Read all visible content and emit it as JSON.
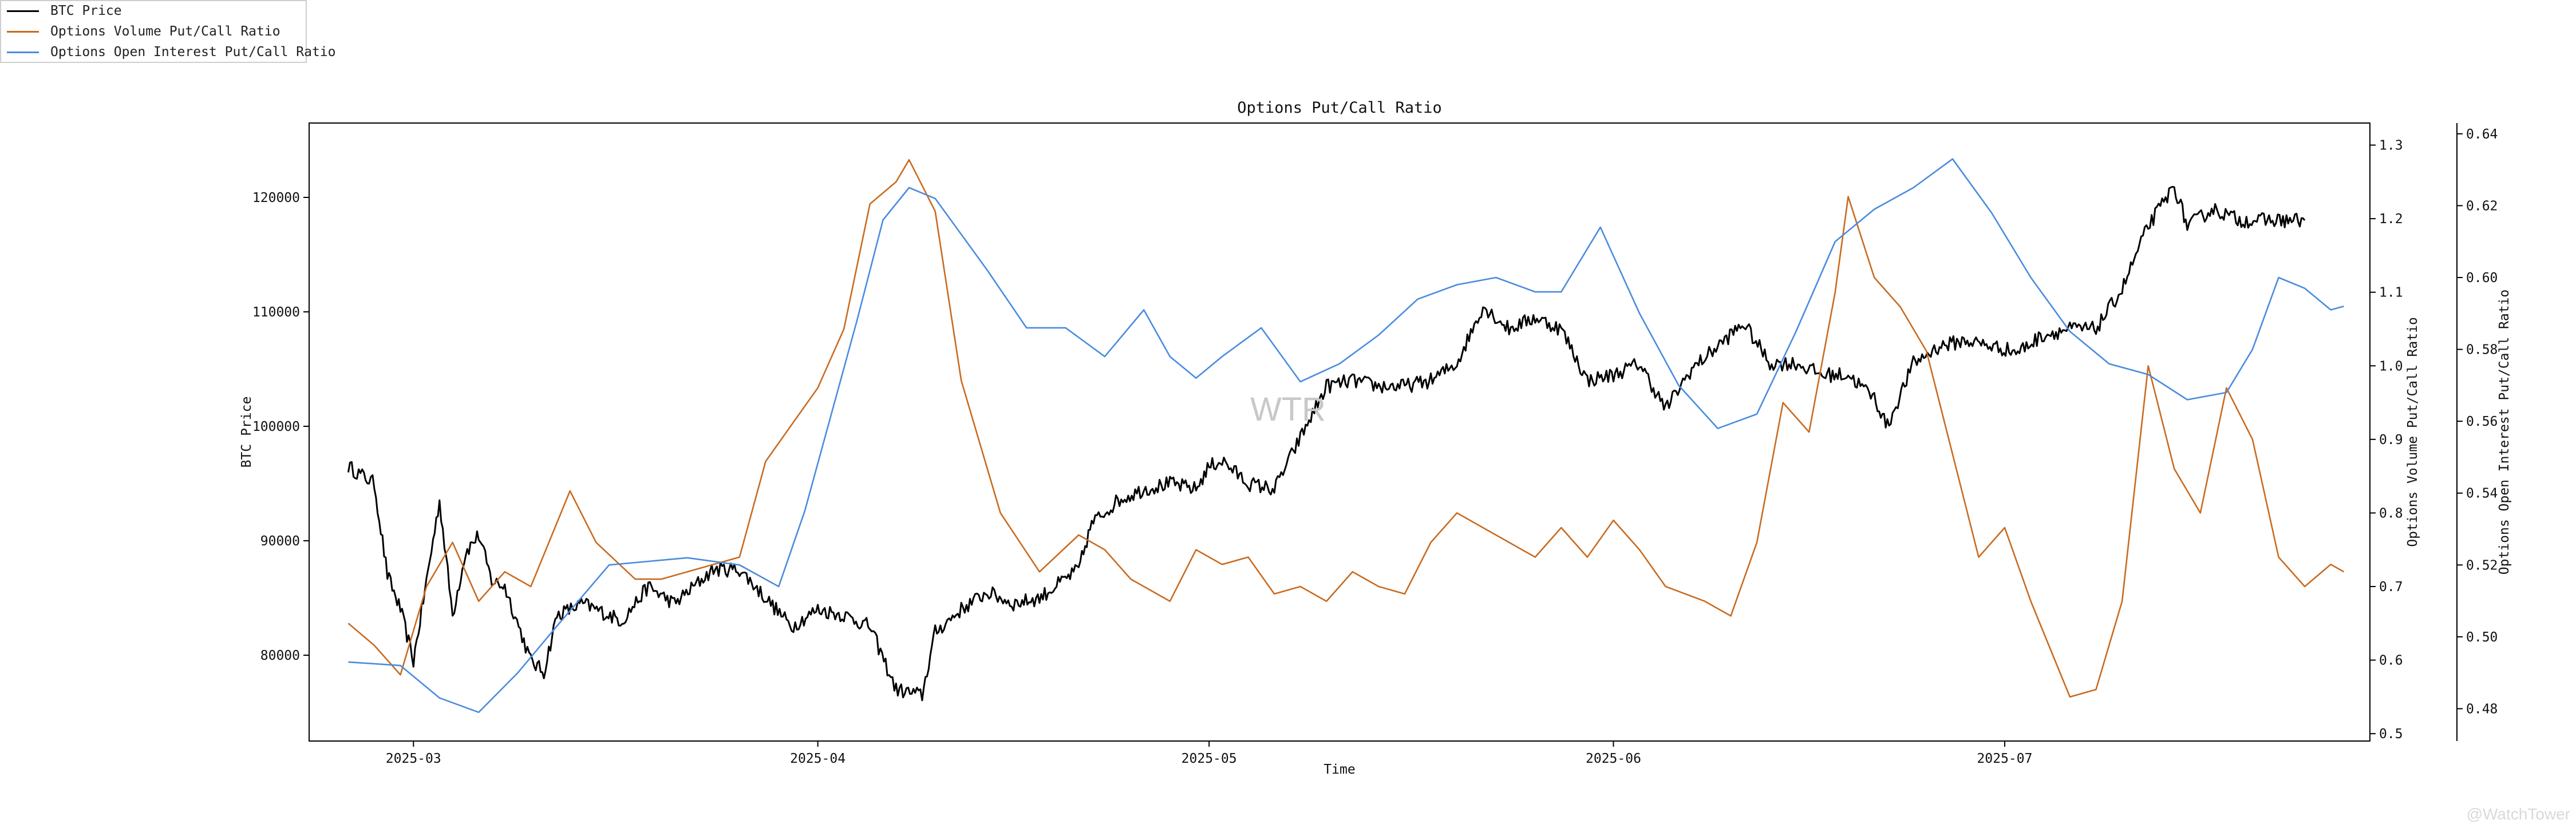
{
  "chart_data": {
    "type": "line",
    "title": "Options Put/Call Ratio",
    "xlabel": "Time",
    "x_ticks": [
      "2025-03",
      "2025-04",
      "2025-05",
      "2025-06",
      "2025-07"
    ],
    "x_range": [
      "2025-02-21",
      "2025-07-29"
    ],
    "axes": {
      "left": {
        "label": "BTC Price",
        "lim": [
          72500,
          126500
        ],
        "ticks": [
          80000,
          90000,
          100000,
          110000,
          120000
        ]
      },
      "right1": {
        "label": "Options Volume Put/Call Ratio",
        "lim": [
          0.49,
          1.33
        ],
        "ticks": [
          0.5,
          0.6,
          0.7,
          0.8,
          0.9,
          1.0,
          1.1,
          1.2,
          1.3
        ]
      },
      "right2": {
        "label": "Options Open Interest Put/Call Ratio",
        "lim": [
          0.471,
          0.643
        ],
        "ticks": [
          0.48,
          0.5,
          0.52,
          0.54,
          0.56,
          0.58,
          0.6,
          0.62,
          0.64
        ]
      }
    },
    "series": [
      {
        "name": "BTC Price",
        "axis": "left",
        "color": "#000000",
        "points": [
          [
            "2025-02-24",
            96500
          ],
          [
            "2025-02-26",
            95000
          ],
          [
            "2025-02-27",
            87000
          ],
          [
            "2025-02-28",
            84000
          ],
          [
            "2025-03-01",
            79500
          ],
          [
            "2025-03-02",
            86500
          ],
          [
            "2025-03-03",
            93500
          ],
          [
            "2025-03-04",
            83500
          ],
          [
            "2025-03-05",
            89000
          ],
          [
            "2025-03-06",
            90500
          ],
          [
            "2025-03-07",
            86500
          ],
          [
            "2025-03-08",
            86000
          ],
          [
            "2025-03-10",
            79500
          ],
          [
            "2025-03-11",
            78500
          ],
          [
            "2025-03-12",
            83500
          ],
          [
            "2025-03-14",
            84500
          ],
          [
            "2025-03-17",
            83000
          ],
          [
            "2025-03-19",
            86000
          ],
          [
            "2025-03-21",
            84500
          ],
          [
            "2025-03-24",
            87500
          ],
          [
            "2025-03-26",
            87500
          ],
          [
            "2025-03-28",
            85000
          ],
          [
            "2025-03-30",
            82500
          ],
          [
            "2025-04-01",
            84000
          ],
          [
            "2025-04-03",
            83500
          ],
          [
            "2025-04-05",
            82500
          ],
          [
            "2025-04-07",
            77000
          ],
          [
            "2025-04-09",
            76500
          ],
          [
            "2025-04-10",
            82000
          ],
          [
            "2025-04-12",
            84000
          ],
          [
            "2025-04-14",
            85500
          ],
          [
            "2025-04-16",
            84500
          ],
          [
            "2025-04-18",
            85000
          ],
          [
            "2025-04-21",
            87500
          ],
          [
            "2025-04-22",
            91500
          ],
          [
            "2025-04-24",
            93500
          ],
          [
            "2025-04-26",
            94500
          ],
          [
            "2025-04-28",
            95000
          ],
          [
            "2025-04-30",
            94500
          ],
          [
            "2025-05-01",
            96500
          ],
          [
            "2025-05-02",
            97000
          ],
          [
            "2025-05-04",
            95000
          ],
          [
            "2025-05-06",
            94500
          ],
          [
            "2025-05-08",
            99000
          ],
          [
            "2025-05-10",
            103500
          ],
          [
            "2025-05-12",
            104000
          ],
          [
            "2025-05-14",
            103500
          ],
          [
            "2025-05-16",
            103500
          ],
          [
            "2025-05-18",
            104000
          ],
          [
            "2025-05-20",
            105500
          ],
          [
            "2025-05-22",
            110500
          ],
          [
            "2025-05-24",
            108500
          ],
          [
            "2025-05-26",
            109500
          ],
          [
            "2025-05-28",
            108500
          ],
          [
            "2025-05-30",
            104000
          ],
          [
            "2025-06-01",
            104500
          ],
          [
            "2025-06-03",
            105500
          ],
          [
            "2025-06-05",
            101500
          ],
          [
            "2025-06-07",
            105000
          ],
          [
            "2025-06-09",
            107000
          ],
          [
            "2025-06-11",
            109000
          ],
          [
            "2025-06-13",
            105500
          ],
          [
            "2025-06-15",
            105500
          ],
          [
            "2025-06-17",
            104500
          ],
          [
            "2025-06-19",
            104500
          ],
          [
            "2025-06-21",
            102500
          ],
          [
            "2025-06-22",
            100000
          ],
          [
            "2025-06-24",
            105500
          ],
          [
            "2025-06-26",
            107000
          ],
          [
            "2025-06-28",
            107500
          ],
          [
            "2025-06-30",
            107000
          ],
          [
            "2025-07-02",
            106500
          ],
          [
            "2025-07-04",
            108000
          ],
          [
            "2025-07-06",
            108500
          ],
          [
            "2025-07-08",
            108500
          ],
          [
            "2025-07-10",
            112000
          ],
          [
            "2025-07-12",
            117500
          ],
          [
            "2025-07-14",
            121000
          ],
          [
            "2025-07-15",
            117500
          ],
          [
            "2025-07-17",
            119000
          ],
          [
            "2025-07-19",
            118000
          ],
          [
            "2025-07-21",
            118000
          ],
          [
            "2025-07-23",
            118000
          ],
          [
            "2025-07-24",
            118000
          ]
        ]
      },
      {
        "name": "Options Volume Put/Call Ratio",
        "axis": "right1",
        "color": "#c96b20",
        "points": [
          [
            "2025-02-24",
            0.65
          ],
          [
            "2025-02-26",
            0.62
          ],
          [
            "2025-02-28",
            0.58
          ],
          [
            "2025-03-02",
            0.7
          ],
          [
            "2025-03-04",
            0.76
          ],
          [
            "2025-03-06",
            0.68
          ],
          [
            "2025-03-08",
            0.72
          ],
          [
            "2025-03-10",
            0.7
          ],
          [
            "2025-03-13",
            0.83
          ],
          [
            "2025-03-15",
            0.76
          ],
          [
            "2025-03-18",
            0.71
          ],
          [
            "2025-03-20",
            0.71
          ],
          [
            "2025-03-22",
            0.72
          ],
          [
            "2025-03-24",
            0.73
          ],
          [
            "2025-03-26",
            0.74
          ],
          [
            "2025-03-28",
            0.87
          ],
          [
            "2025-03-30",
            0.92
          ],
          [
            "2025-04-01",
            0.97
          ],
          [
            "2025-04-03",
            1.05
          ],
          [
            "2025-04-05",
            1.22
          ],
          [
            "2025-04-07",
            1.25
          ],
          [
            "2025-04-08",
            1.28
          ],
          [
            "2025-04-10",
            1.21
          ],
          [
            "2025-04-12",
            0.98
          ],
          [
            "2025-04-15",
            0.8
          ],
          [
            "2025-04-18",
            0.72
          ],
          [
            "2025-04-21",
            0.77
          ],
          [
            "2025-04-23",
            0.75
          ],
          [
            "2025-04-25",
            0.71
          ],
          [
            "2025-04-28",
            0.68
          ],
          [
            "2025-04-30",
            0.75
          ],
          [
            "2025-05-02",
            0.73
          ],
          [
            "2025-05-04",
            0.74
          ],
          [
            "2025-05-06",
            0.69
          ],
          [
            "2025-05-08",
            0.7
          ],
          [
            "2025-05-10",
            0.68
          ],
          [
            "2025-05-12",
            0.72
          ],
          [
            "2025-05-14",
            0.7
          ],
          [
            "2025-05-16",
            0.69
          ],
          [
            "2025-05-18",
            0.76
          ],
          [
            "2025-05-20",
            0.8
          ],
          [
            "2025-05-22",
            0.78
          ],
          [
            "2025-05-24",
            0.76
          ],
          [
            "2025-05-26",
            0.74
          ],
          [
            "2025-05-28",
            0.78
          ],
          [
            "2025-05-30",
            0.74
          ],
          [
            "2025-06-01",
            0.79
          ],
          [
            "2025-06-03",
            0.75
          ],
          [
            "2025-06-05",
            0.7
          ],
          [
            "2025-06-08",
            0.68
          ],
          [
            "2025-06-10",
            0.66
          ],
          [
            "2025-06-12",
            0.76
          ],
          [
            "2025-06-14",
            0.95
          ],
          [
            "2025-06-16",
            0.91
          ],
          [
            "2025-06-18",
            1.1
          ],
          [
            "2025-06-19",
            1.23
          ],
          [
            "2025-06-21",
            1.12
          ],
          [
            "2025-06-23",
            1.08
          ],
          [
            "2025-06-25",
            1.02
          ],
          [
            "2025-06-27",
            0.88
          ],
          [
            "2025-06-29",
            0.74
          ],
          [
            "2025-07-01",
            0.78
          ],
          [
            "2025-07-03",
            0.68
          ],
          [
            "2025-07-06",
            0.55
          ],
          [
            "2025-07-08",
            0.56
          ],
          [
            "2025-07-10",
            0.68
          ],
          [
            "2025-07-12",
            1.0
          ],
          [
            "2025-07-14",
            0.86
          ],
          [
            "2025-07-16",
            0.8
          ],
          [
            "2025-07-18",
            0.97
          ],
          [
            "2025-07-20",
            0.9
          ],
          [
            "2025-07-22",
            0.74
          ],
          [
            "2025-07-24",
            0.7
          ],
          [
            "2025-07-26",
            0.73
          ],
          [
            "2025-07-27",
            0.72
          ]
        ]
      },
      {
        "name": "Options Open Interest Put/Call Ratio",
        "axis": "right2",
        "color": "#4a8be0",
        "points": [
          [
            "2025-02-24",
            0.493
          ],
          [
            "2025-02-28",
            0.492
          ],
          [
            "2025-03-03",
            0.483
          ],
          [
            "2025-03-06",
            0.479
          ],
          [
            "2025-03-09",
            0.49
          ],
          [
            "2025-03-12",
            0.503
          ],
          [
            "2025-03-16",
            0.52
          ],
          [
            "2025-03-22",
            0.522
          ],
          [
            "2025-03-26",
            0.52
          ],
          [
            "2025-03-29",
            0.514
          ],
          [
            "2025-03-31",
            0.535
          ],
          [
            "2025-04-04",
            0.588
          ],
          [
            "2025-04-06",
            0.616
          ],
          [
            "2025-04-08",
            0.625
          ],
          [
            "2025-04-10",
            0.622
          ],
          [
            "2025-04-14",
            0.602
          ],
          [
            "2025-04-17",
            0.586
          ],
          [
            "2025-04-20",
            0.586
          ],
          [
            "2025-04-23",
            0.578
          ],
          [
            "2025-04-26",
            0.591
          ],
          [
            "2025-04-28",
            0.578
          ],
          [
            "2025-04-30",
            0.572
          ],
          [
            "2025-05-02",
            0.578
          ],
          [
            "2025-05-05",
            0.586
          ],
          [
            "2025-05-08",
            0.571
          ],
          [
            "2025-05-11",
            0.576
          ],
          [
            "2025-05-14",
            0.584
          ],
          [
            "2025-05-17",
            0.594
          ],
          [
            "2025-05-20",
            0.598
          ],
          [
            "2025-05-23",
            0.6
          ],
          [
            "2025-05-26",
            0.596
          ],
          [
            "2025-05-28",
            0.596
          ],
          [
            "2025-05-31",
            0.614
          ],
          [
            "2025-06-03",
            0.59
          ],
          [
            "2025-06-06",
            0.57
          ],
          [
            "2025-06-09",
            0.558
          ],
          [
            "2025-06-12",
            0.562
          ],
          [
            "2025-06-15",
            0.585
          ],
          [
            "2025-06-18",
            0.61
          ],
          [
            "2025-06-21",
            0.619
          ],
          [
            "2025-06-24",
            0.625
          ],
          [
            "2025-06-27",
            0.633
          ],
          [
            "2025-06-30",
            0.618
          ],
          [
            "2025-07-03",
            0.6
          ],
          [
            "2025-07-06",
            0.585
          ],
          [
            "2025-07-09",
            0.576
          ],
          [
            "2025-07-12",
            0.573
          ],
          [
            "2025-07-15",
            0.566
          ],
          [
            "2025-07-18",
            0.568
          ],
          [
            "2025-07-20",
            0.58
          ],
          [
            "2025-07-22",
            0.6
          ],
          [
            "2025-07-24",
            0.597
          ],
          [
            "2025-07-26",
            0.591
          ],
          [
            "2025-07-27",
            0.592
          ]
        ]
      }
    ],
    "legend": {
      "placement": "top-left, outside"
    },
    "watermark": "WTR",
    "footer_watermark": "@WatchTower"
  }
}
